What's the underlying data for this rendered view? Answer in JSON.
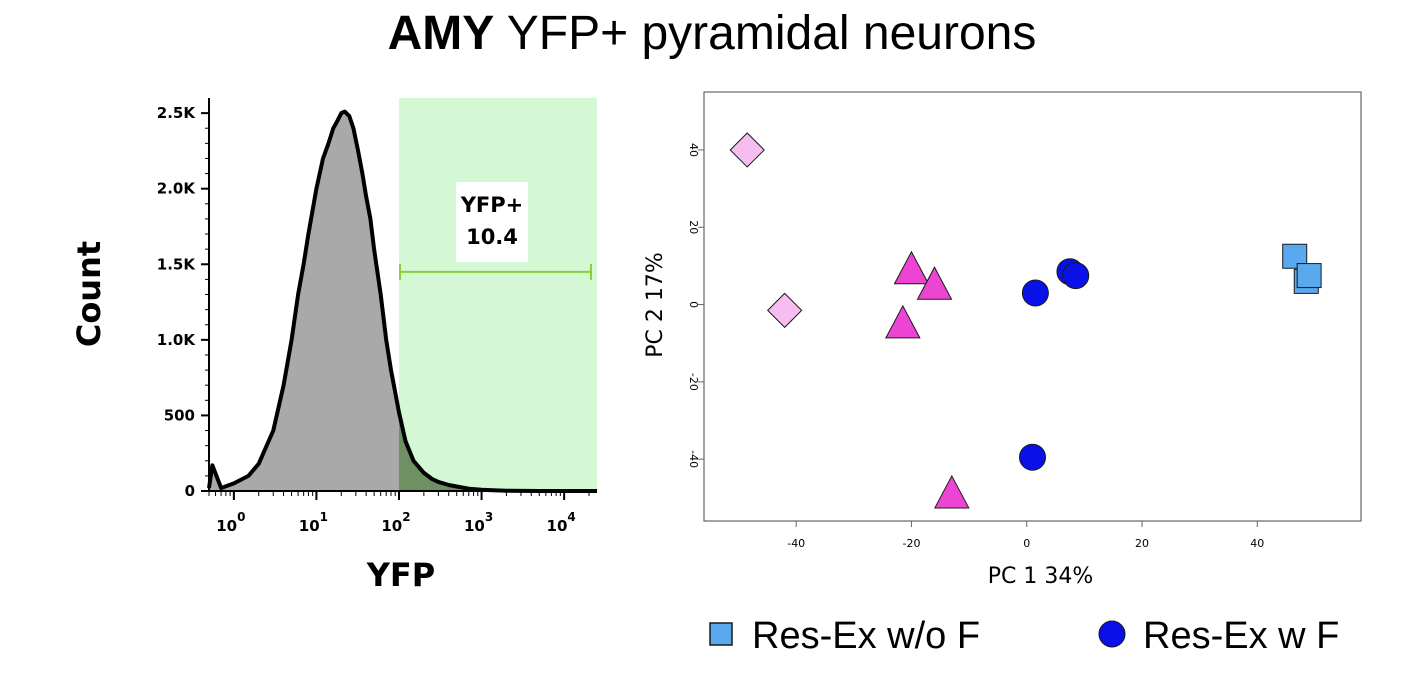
{
  "title": {
    "bold": "AMY",
    "rest": " YFP+ pyramidal neurons"
  },
  "chart_data": [
    {
      "type": "area",
      "xlabel": "YFP",
      "ylabel": "Count",
      "xscale": "log",
      "xlim": [
        0.5,
        25000
      ],
      "ylim": [
        0,
        2600
      ],
      "xticks": [
        {
          "base": "10",
          "exp": "0",
          "value": 1
        },
        {
          "base": "10",
          "exp": "1",
          "value": 10
        },
        {
          "base": "10",
          "exp": "2",
          "value": 100
        },
        {
          "base": "10",
          "exp": "3",
          "value": 1000
        },
        {
          "base": "10",
          "exp": "4",
          "value": 10000
        }
      ],
      "yticks": [
        {
          "label": "0",
          "value": 0
        },
        {
          "label": "500",
          "value": 500
        },
        {
          "label": "1.0K",
          "value": 1000
        },
        {
          "label": "1.5K",
          "value": 1500
        },
        {
          "label": "2.0K",
          "value": 2000
        },
        {
          "label": "2.5K",
          "value": 2500
        }
      ],
      "histogram": {
        "x": [
          0.5,
          0.55,
          0.7,
          1,
          1.5,
          2,
          3,
          4,
          5,
          6,
          7,
          8,
          10,
          12,
          14,
          16,
          18,
          20,
          22,
          25,
          28,
          32,
          36,
          40,
          45,
          50,
          60,
          70,
          80,
          100,
          120,
          150,
          200,
          250,
          300,
          400,
          500,
          700,
          1000,
          1500,
          2000,
          5000,
          10000,
          25000
        ],
        "y": [
          20,
          170,
          20,
          50,
          100,
          180,
          400,
          700,
          1000,
          1300,
          1500,
          1700,
          2000,
          2200,
          2300,
          2400,
          2450,
          2500,
          2510,
          2480,
          2400,
          2250,
          2100,
          1950,
          1800,
          1600,
          1300,
          1000,
          800,
          520,
          330,
          200,
          120,
          80,
          60,
          40,
          30,
          15,
          8,
          4,
          2,
          0,
          0,
          0
        ]
      },
      "gate": {
        "label": "YFP+",
        "value": "10.4",
        "x_range": [
          100,
          25000
        ],
        "y_level": 1450,
        "fill_color": "#d4f7d4",
        "bar_color": "#8ccf3c"
      },
      "colors": {
        "histogram_fill": "#a9a9a9",
        "histogram_gated": "#6e9063",
        "outline": "#000000"
      }
    },
    {
      "type": "scatter",
      "xlabel": "PC 1 34%",
      "ylabel": "PC 2 17%",
      "xlim": [
        -56,
        58
      ],
      "ylim": [
        -56,
        55
      ],
      "xticks": [
        -40,
        -20,
        0,
        20,
        40
      ],
      "yticks": [
        -40,
        -20,
        0,
        20,
        40
      ],
      "series": [
        {
          "marker": "diamond",
          "color": "#f6bdf1",
          "points": [
            [
              -48.5,
              40
            ],
            [
              -42,
              -1.5
            ]
          ]
        },
        {
          "marker": "triangle",
          "color": "#ec45d3",
          "points": [
            [
              -20,
              9
            ],
            [
              -16,
              5
            ],
            [
              -21.5,
              -5
            ],
            [
              -13,
              -49
            ]
          ]
        },
        {
          "name": "Res-Ex w F",
          "marker": "circle",
          "color": "#0a10e8",
          "points": [
            [
              1.5,
              3
            ],
            [
              7.5,
              8.5
            ],
            [
              8.5,
              7.5
            ],
            [
              1,
              -39.5
            ]
          ]
        },
        {
          "name": "Res-Ex w/o F",
          "marker": "square",
          "color": "#5aa8ee",
          "points": [
            [
              46.5,
              12.5
            ],
            [
              48.5,
              6
            ],
            [
              49,
              7.5
            ]
          ]
        }
      ],
      "legend": [
        {
          "label": "Res-Ex w/o F",
          "marker": "square",
          "color": "#5aa8ee"
        },
        {
          "label": "Res-Ex w F",
          "marker": "circle",
          "color": "#0a10e8"
        }
      ],
      "legend_position": "bottom",
      "grid": false
    }
  ]
}
